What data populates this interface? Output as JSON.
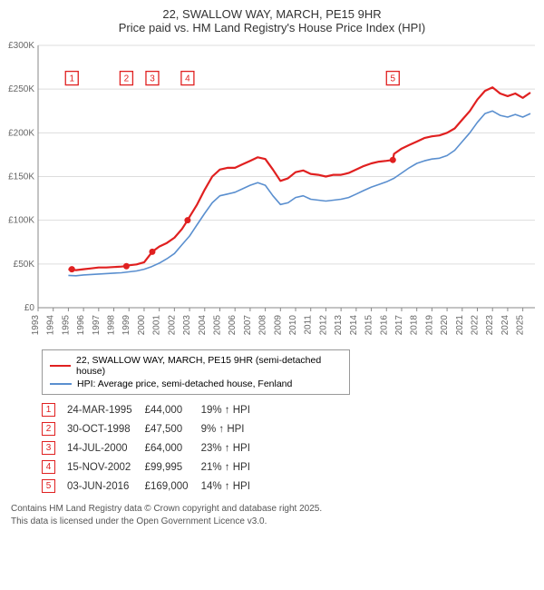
{
  "title": {
    "line1": "22, SWALLOW WAY, MARCH, PE15 9HR",
    "line2": "Price paid vs. HM Land Registry's House Price Index (HPI)"
  },
  "chart": {
    "type": "line",
    "background_color": "#ffffff",
    "plot_background_color": "#ffffff",
    "grid_color": "#dddddd",
    "axis_color": "#888888",
    "axis_label_color": "#666666",
    "x": {
      "min": 1993,
      "max": 2025.8,
      "ticks": [
        1993,
        1994,
        1995,
        1996,
        1997,
        1998,
        1999,
        2000,
        2001,
        2002,
        2003,
        2004,
        2005,
        2006,
        2007,
        2008,
        2009,
        2010,
        2011,
        2012,
        2013,
        2014,
        2015,
        2016,
        2017,
        2018,
        2019,
        2020,
        2021,
        2022,
        2023,
        2024,
        2025
      ],
      "tick_fontsize": 10,
      "tick_rotation": -90
    },
    "y": {
      "min": 0,
      "max": 300000,
      "ticks": [
        0,
        50000,
        100000,
        150000,
        200000,
        250000,
        300000
      ],
      "tick_labels": [
        "£0",
        "£50K",
        "£100K",
        "£150K",
        "£200K",
        "£250K",
        "£300K"
      ],
      "tick_fontsize": 10
    },
    "series": [
      {
        "name": "22, SWALLOW WAY, MARCH, PE15 9HR (semi-detached house)",
        "color": "#e02020",
        "line_width": 2.2,
        "points": [
          [
            1995.0,
            44000
          ],
          [
            1995.5,
            43000
          ],
          [
            1996.0,
            44000
          ],
          [
            1996.5,
            45000
          ],
          [
            1997.0,
            46000
          ],
          [
            1997.5,
            46000
          ],
          [
            1998.0,
            46500
          ],
          [
            1998.5,
            47000
          ],
          [
            1998.83,
            47500
          ],
          [
            1999.0,
            48500
          ],
          [
            1999.5,
            49500
          ],
          [
            2000.0,
            52000
          ],
          [
            2000.54,
            64000
          ],
          [
            2001.0,
            70000
          ],
          [
            2001.5,
            74000
          ],
          [
            2002.0,
            80000
          ],
          [
            2002.5,
            90000
          ],
          [
            2002.87,
            99995
          ],
          [
            2003.0,
            104000
          ],
          [
            2003.5,
            118000
          ],
          [
            2004.0,
            135000
          ],
          [
            2004.5,
            150000
          ],
          [
            2005.0,
            158000
          ],
          [
            2005.5,
            160000
          ],
          [
            2006.0,
            160000
          ],
          [
            2006.5,
            164000
          ],
          [
            2007.0,
            168000
          ],
          [
            2007.5,
            172000
          ],
          [
            2008.0,
            170000
          ],
          [
            2008.5,
            158000
          ],
          [
            2009.0,
            145000
          ],
          [
            2009.5,
            148000
          ],
          [
            2010.0,
            155000
          ],
          [
            2010.5,
            157000
          ],
          [
            2011.0,
            153000
          ],
          [
            2011.5,
            152000
          ],
          [
            2012.0,
            150000
          ],
          [
            2012.5,
            152000
          ],
          [
            2013.0,
            152000
          ],
          [
            2013.5,
            154000
          ],
          [
            2014.0,
            158000
          ],
          [
            2014.5,
            162000
          ],
          [
            2015.0,
            165000
          ],
          [
            2015.5,
            167000
          ],
          [
            2016.0,
            168000
          ],
          [
            2016.42,
            169000
          ],
          [
            2016.5,
            176000
          ],
          [
            2017.0,
            182000
          ],
          [
            2017.5,
            186000
          ],
          [
            2018.0,
            190000
          ],
          [
            2018.5,
            194000
          ],
          [
            2019.0,
            196000
          ],
          [
            2019.5,
            197000
          ],
          [
            2020.0,
            200000
          ],
          [
            2020.5,
            205000
          ],
          [
            2021.0,
            215000
          ],
          [
            2021.5,
            225000
          ],
          [
            2022.0,
            238000
          ],
          [
            2022.5,
            248000
          ],
          [
            2023.0,
            252000
          ],
          [
            2023.5,
            245000
          ],
          [
            2024.0,
            242000
          ],
          [
            2024.5,
            245000
          ],
          [
            2025.0,
            240000
          ],
          [
            2025.5,
            246000
          ]
        ],
        "sale_markers": [
          {
            "n": 1,
            "year": 1995.23,
            "price": 44000
          },
          {
            "n": 2,
            "year": 1998.83,
            "price": 47500
          },
          {
            "n": 3,
            "year": 2000.54,
            "price": 64000
          },
          {
            "n": 4,
            "year": 2002.87,
            "price": 99995
          },
          {
            "n": 5,
            "year": 2016.42,
            "price": 169000
          }
        ],
        "marker_dot_color": "#e02020",
        "marker_dot_radius": 3.5,
        "marker_box_border": "#e02020",
        "marker_box_text_color": "#e02020",
        "marker_box_y": 262000
      },
      {
        "name": "HPI: Average price, semi-detached house, Fenland",
        "color": "#5a8fcf",
        "line_width": 1.6,
        "points": [
          [
            1995.0,
            37000
          ],
          [
            1995.5,
            36500
          ],
          [
            1996.0,
            37500
          ],
          [
            1996.5,
            38000
          ],
          [
            1997.0,
            38500
          ],
          [
            1997.5,
            39000
          ],
          [
            1998.0,
            39500
          ],
          [
            1998.5,
            40000
          ],
          [
            1999.0,
            41000
          ],
          [
            1999.5,
            42000
          ],
          [
            2000.0,
            44000
          ],
          [
            2000.5,
            47000
          ],
          [
            2001.0,
            51000
          ],
          [
            2001.5,
            56000
          ],
          [
            2002.0,
            62000
          ],
          [
            2002.5,
            72000
          ],
          [
            2003.0,
            82000
          ],
          [
            2003.5,
            95000
          ],
          [
            2004.0,
            108000
          ],
          [
            2004.5,
            120000
          ],
          [
            2005.0,
            128000
          ],
          [
            2005.5,
            130000
          ],
          [
            2006.0,
            132000
          ],
          [
            2006.5,
            136000
          ],
          [
            2007.0,
            140000
          ],
          [
            2007.5,
            143000
          ],
          [
            2008.0,
            140000
          ],
          [
            2008.5,
            128000
          ],
          [
            2009.0,
            118000
          ],
          [
            2009.5,
            120000
          ],
          [
            2010.0,
            126000
          ],
          [
            2010.5,
            128000
          ],
          [
            2011.0,
            124000
          ],
          [
            2011.5,
            123000
          ],
          [
            2012.0,
            122000
          ],
          [
            2012.5,
            123000
          ],
          [
            2013.0,
            124000
          ],
          [
            2013.5,
            126000
          ],
          [
            2014.0,
            130000
          ],
          [
            2014.5,
            134000
          ],
          [
            2015.0,
            138000
          ],
          [
            2015.5,
            141000
          ],
          [
            2016.0,
            144000
          ],
          [
            2016.5,
            148000
          ],
          [
            2017.0,
            154000
          ],
          [
            2017.5,
            160000
          ],
          [
            2018.0,
            165000
          ],
          [
            2018.5,
            168000
          ],
          [
            2019.0,
            170000
          ],
          [
            2019.5,
            171000
          ],
          [
            2020.0,
            174000
          ],
          [
            2020.5,
            180000
          ],
          [
            2021.0,
            190000
          ],
          [
            2021.5,
            200000
          ],
          [
            2022.0,
            212000
          ],
          [
            2022.5,
            222000
          ],
          [
            2023.0,
            225000
          ],
          [
            2023.5,
            220000
          ],
          [
            2024.0,
            218000
          ],
          [
            2024.5,
            221000
          ],
          [
            2025.0,
            218000
          ],
          [
            2025.5,
            222000
          ]
        ]
      }
    ]
  },
  "legend": {
    "border_color": "#999999",
    "items": [
      {
        "color": "#e02020",
        "label": "22, SWALLOW WAY, MARCH, PE15 9HR (semi-detached house)"
      },
      {
        "color": "#5a8fcf",
        "label": "HPI: Average price, semi-detached house, Fenland"
      }
    ]
  },
  "transactions": [
    {
      "n": "1",
      "date": "24-MAR-1995",
      "price": "£44,000",
      "delta": "19% ↑ HPI"
    },
    {
      "n": "2",
      "date": "30-OCT-1998",
      "price": "£47,500",
      "delta": "9% ↑ HPI"
    },
    {
      "n": "3",
      "date": "14-JUL-2000",
      "price": "£64,000",
      "delta": "23% ↑ HPI"
    },
    {
      "n": "4",
      "date": "15-NOV-2002",
      "price": "£99,995",
      "delta": "21% ↑ HPI"
    },
    {
      "n": "5",
      "date": "03-JUN-2016",
      "price": "£169,000",
      "delta": "14% ↑ HPI"
    }
  ],
  "attribution": {
    "line1": "Contains HM Land Registry data © Crown copyright and database right 2025.",
    "line2": "This data is licensed under the Open Government Licence v3.0."
  }
}
